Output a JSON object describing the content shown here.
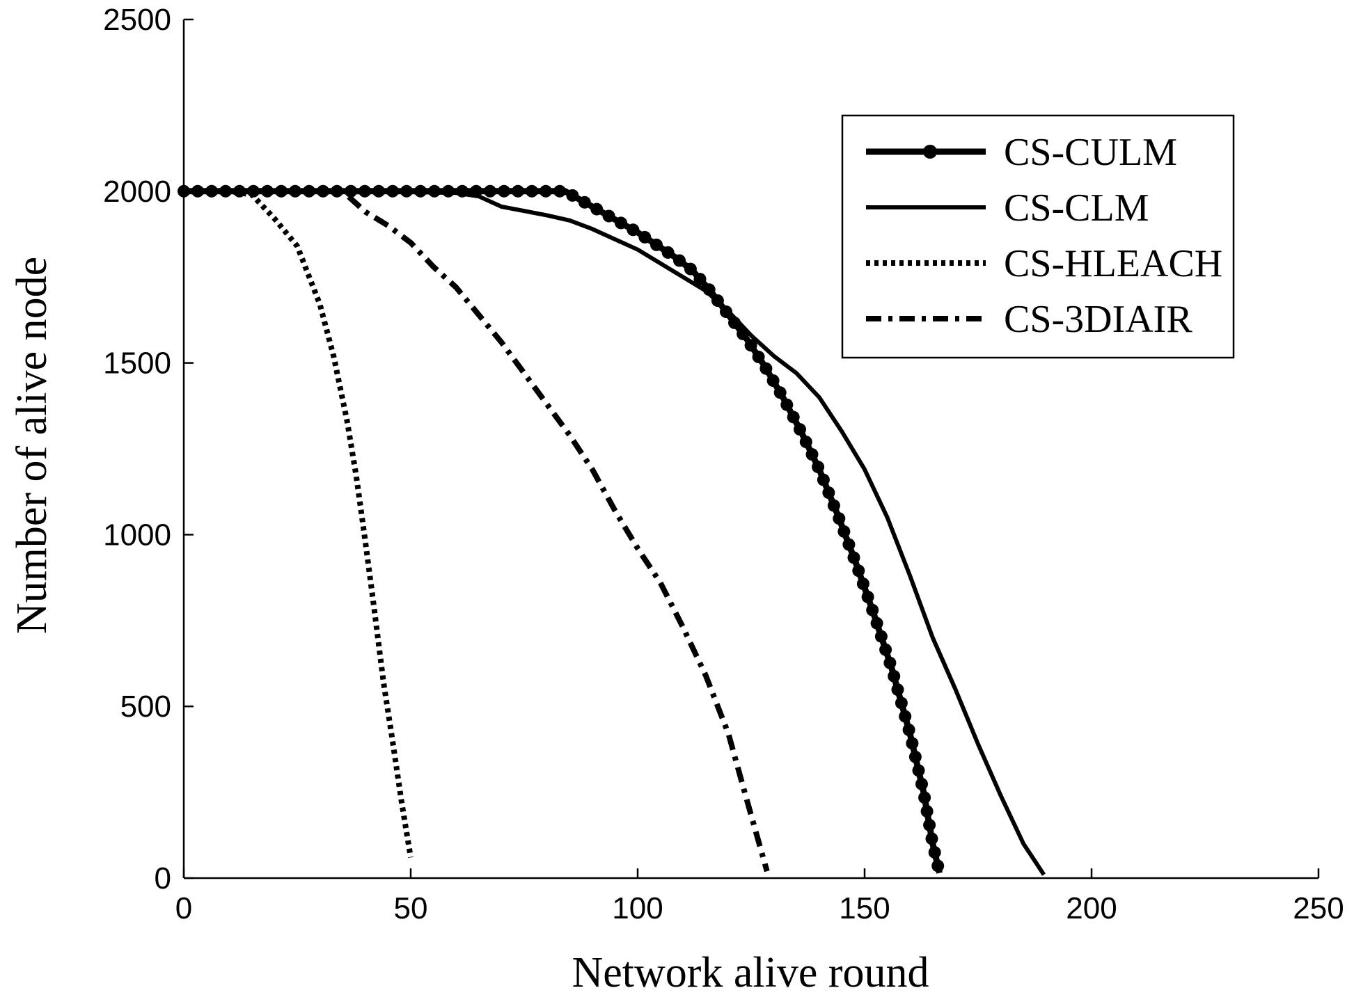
{
  "chart_data": {
    "type": "line",
    "title": "",
    "xlabel": "Network alive round",
    "ylabel": "Number of alive node",
    "xlim": [
      0,
      250
    ],
    "ylim": [
      0,
      2500
    ],
    "xticks": [
      0,
      50,
      100,
      150,
      200,
      250
    ],
    "yticks": [
      0,
      500,
      1000,
      1500,
      2000,
      2500
    ],
    "grid": false,
    "legend_position": "top-right",
    "series": [
      {
        "name": "CS-CULM",
        "style": "solid-circle-markers",
        "color": "#000000",
        "x": [
          0,
          10,
          20,
          30,
          40,
          50,
          60,
          70,
          80,
          84,
          88,
          92,
          96,
          100,
          104,
          108,
          112,
          116,
          120,
          124,
          128,
          132,
          136,
          140,
          144,
          148,
          152,
          156,
          160,
          163,
          165,
          166.5
        ],
        "y": [
          2000,
          2000,
          2000,
          2000,
          2000,
          2000,
          2000,
          2000,
          2000,
          2000,
          1970,
          1940,
          1910,
          1880,
          1845,
          1810,
          1770,
          1710,
          1640,
          1570,
          1490,
          1400,
          1300,
          1190,
          1060,
          920,
          770,
          610,
          420,
          250,
          100,
          15
        ]
      },
      {
        "name": "CS-CLM",
        "style": "solid",
        "color": "#000000",
        "x": [
          0,
          20,
          40,
          60,
          65,
          70,
          80,
          85,
          90,
          100,
          110,
          115,
          120,
          125,
          130,
          135,
          140,
          145,
          150,
          155,
          160,
          165,
          170,
          175,
          180,
          185,
          188,
          189.5
        ],
        "y": [
          2000,
          2000,
          2000,
          1995,
          1985,
          1955,
          1930,
          1915,
          1890,
          1830,
          1750,
          1710,
          1650,
          1580,
          1520,
          1470,
          1400,
          1300,
          1190,
          1050,
          880,
          700,
          550,
          390,
          240,
          100,
          40,
          10
        ]
      },
      {
        "name": "CS-HLEACH",
        "style": "dotted",
        "color": "#000000",
        "x": [
          0,
          10,
          15,
          20,
          25,
          30,
          33,
          36,
          38,
          40,
          42,
          44,
          46,
          48,
          50
        ],
        "y": [
          2000,
          2000,
          1990,
          1920,
          1840,
          1670,
          1520,
          1330,
          1170,
          980,
          780,
          570,
          400,
          220,
          60
        ]
      },
      {
        "name": "CS-3DIAIR",
        "style": "dash-dot",
        "color": "#000000",
        "x": [
          0,
          20,
          35,
          40,
          45,
          50,
          55,
          60,
          65,
          70,
          75,
          80,
          85,
          90,
          95,
          100,
          105,
          110,
          115,
          120,
          124,
          127,
          128.5
        ],
        "y": [
          2000,
          2000,
          2000,
          1940,
          1900,
          1850,
          1780,
          1720,
          1640,
          1560,
          1470,
          1380,
          1290,
          1190,
          1070,
          960,
          860,
          730,
          590,
          420,
          230,
          90,
          20
        ]
      }
    ]
  }
}
